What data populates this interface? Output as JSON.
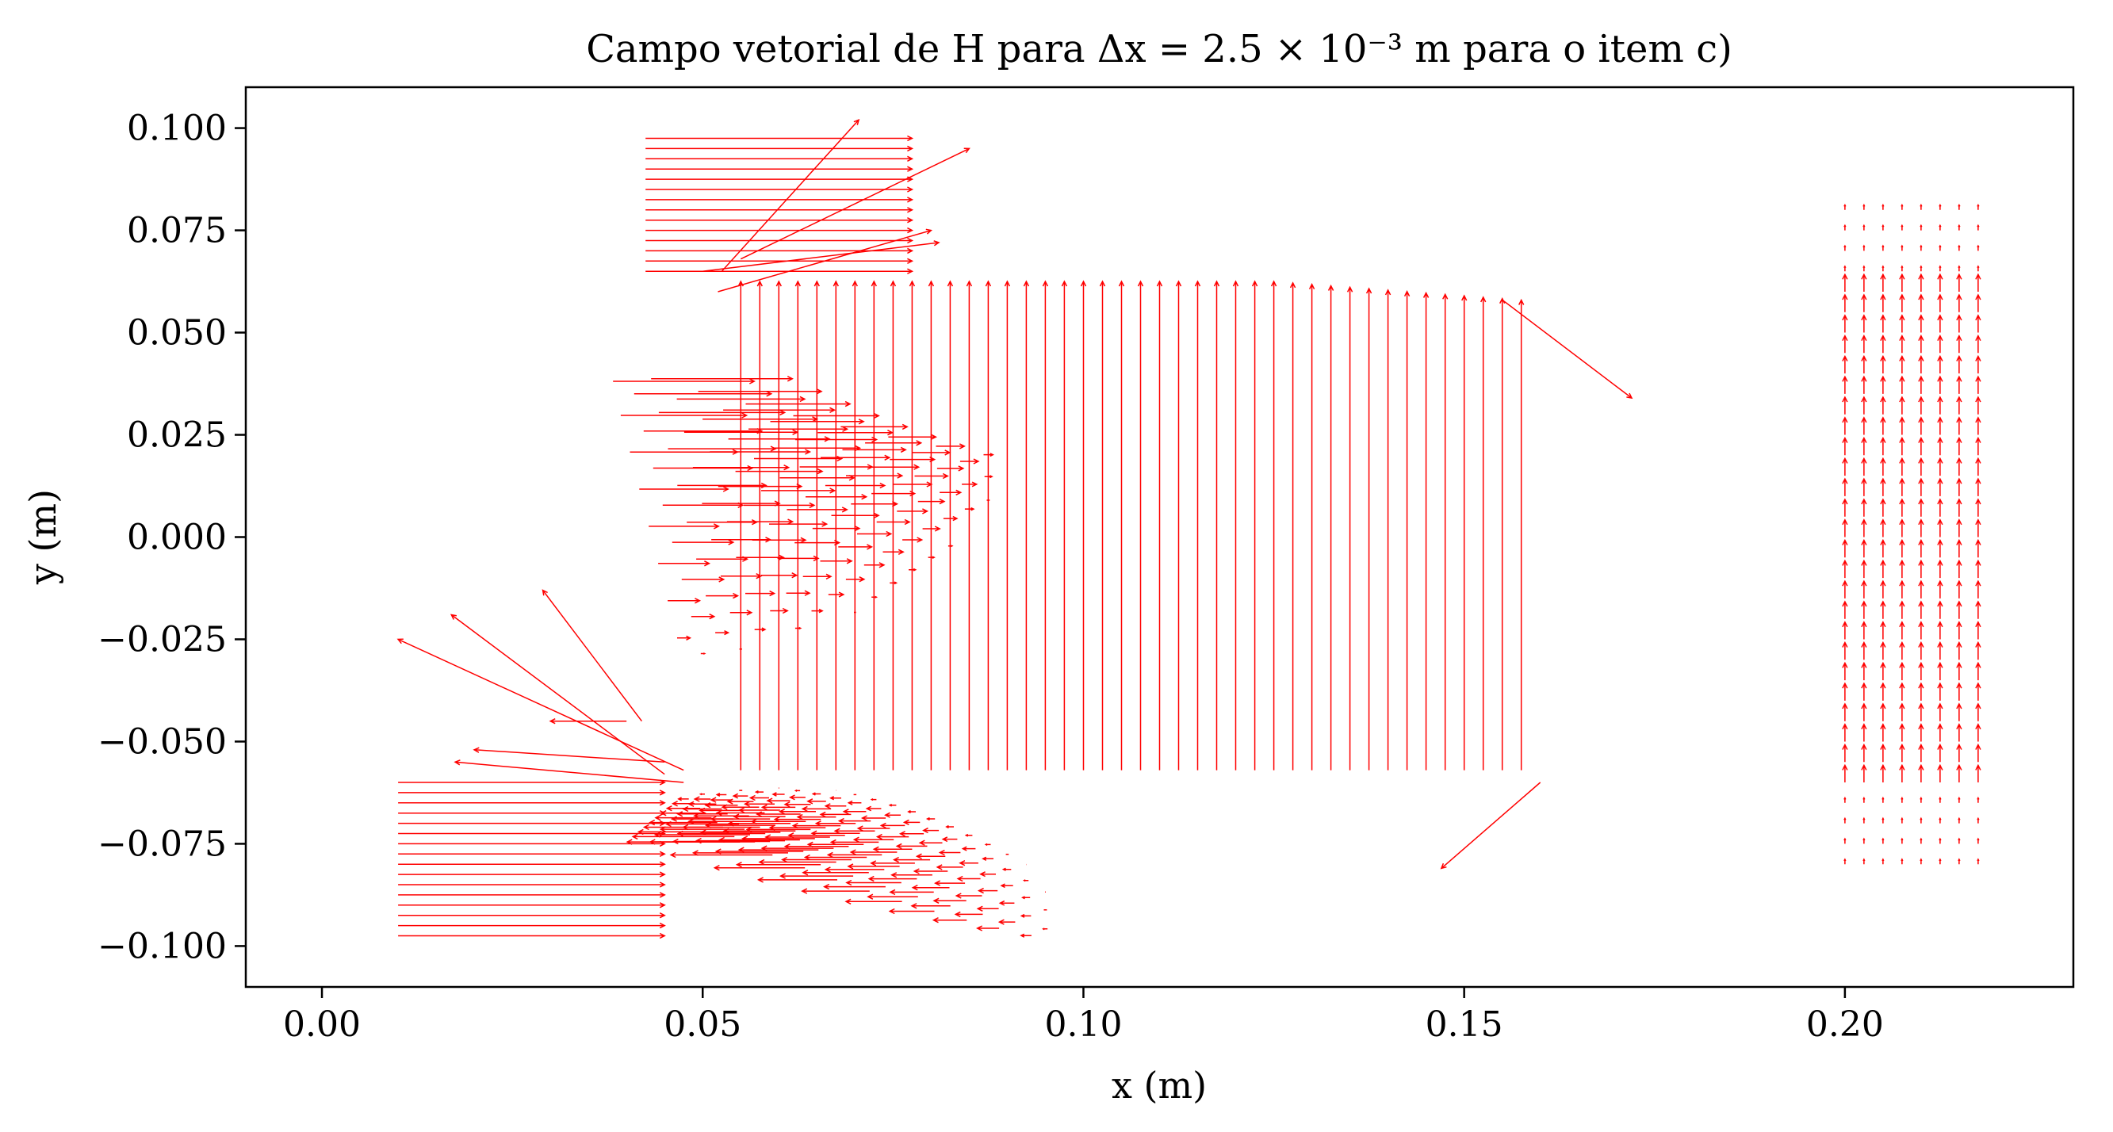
{
  "chart_data": {
    "type": "quiver",
    "title": "Campo vetorial de H para Δx = 2.5 × 10⁻³ m para o item c)",
    "xlabel": "x (m)",
    "ylabel": "y (m)",
    "xlim": [
      -0.01,
      0.23
    ],
    "ylim": [
      -0.11,
      0.11
    ],
    "x_ticks": [
      {
        "value": 0.0,
        "label": "0.00"
      },
      {
        "value": 0.05,
        "label": "0.05"
      },
      {
        "value": 0.1,
        "label": "0.10"
      },
      {
        "value": 0.15,
        "label": "0.15"
      },
      {
        "value": 0.2,
        "label": "0.20"
      }
    ],
    "y_ticks": [
      {
        "value": 0.1,
        "label": "0.100"
      },
      {
        "value": 0.075,
        "label": "0.075"
      },
      {
        "value": 0.05,
        "label": "0.050"
      },
      {
        "value": 0.025,
        "label": "0.025"
      },
      {
        "value": 0.0,
        "label": "0.000"
      },
      {
        "value": -0.025,
        "label": "−0.025"
      },
      {
        "value": -0.05,
        "label": "−0.050"
      },
      {
        "value": -0.075,
        "label": "−0.075"
      },
      {
        "value": -0.1,
        "label": "−0.100"
      }
    ],
    "grid": false,
    "arrow_color": "#ff0000",
    "regions": [
      {
        "name": "lower-left-rect",
        "x": [
          0.01,
          0.0475
        ],
        "y": [
          -0.0975,
          -0.06
        ],
        "u": 0.035,
        "v": 0.0
      },
      {
        "name": "upper-left-rect",
        "x": [
          0.0425,
          0.08
        ],
        "y": [
          0.065,
          0.0975
        ],
        "u": 0.035,
        "v": 0.0
      },
      {
        "name": "main-channel",
        "x": [
          0.0475,
          0.16
        ],
        "y": [
          -0.0575,
          0.0625
        ],
        "u": 0.0,
        "v": 0.12
      },
      {
        "name": "right-block",
        "x": [
          0.2,
          0.2175
        ],
        "y": [
          -0.08,
          0.08
        ],
        "u": 0.0,
        "v": 0.03
      }
    ],
    "outlier_arrows": [
      {
        "x": 0.155,
        "y": 0.058,
        "u": 0.017,
        "v": -0.024
      },
      {
        "x": 0.16,
        "y": -0.06,
        "u": -0.013,
        "v": -0.021
      },
      {
        "x": 0.0475,
        "y": -0.057,
        "u": -0.0375,
        "v": 0.032
      },
      {
        "x": 0.045,
        "y": -0.058,
        "u": -0.028,
        "v": 0.039
      },
      {
        "x": 0.042,
        "y": -0.045,
        "u": -0.013,
        "v": 0.032
      },
      {
        "x": 0.0475,
        "y": -0.06,
        "u": -0.03,
        "v": 0.005
      },
      {
        "x": 0.045,
        "y": -0.055,
        "u": -0.025,
        "v": 0.003
      },
      {
        "x": 0.04,
        "y": -0.045,
        "u": -0.01,
        "v": 0.0
      },
      {
        "x": 0.0525,
        "y": 0.065,
        "u": 0.018,
        "v": 0.037
      },
      {
        "x": 0.055,
        "y": 0.068,
        "u": 0.03,
        "v": 0.027
      },
      {
        "x": 0.052,
        "y": 0.06,
        "u": 0.028,
        "v": 0.015
      },
      {
        "x": 0.05,
        "y": 0.065,
        "u": 0.031,
        "v": 0.007
      }
    ]
  }
}
